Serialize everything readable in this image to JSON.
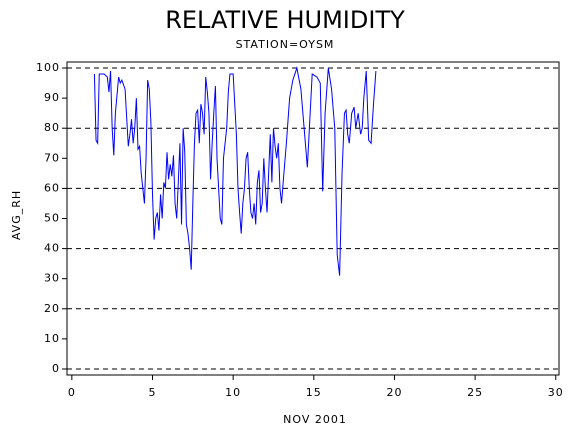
{
  "chart_data": {
    "type": "line",
    "title": "RELATIVE HUMIDITY",
    "subtitle": "STATION=OYSM",
    "x_label": "NOV 2001",
    "y_label": "AVG_RH",
    "grid": true,
    "color": "#0000ff",
    "xlim": [
      -0.3,
      30.2
    ],
    "ylim": [
      -2,
      102
    ],
    "xticks": [
      0,
      5,
      10,
      15,
      20,
      25,
      30
    ],
    "yticks": [
      0,
      10,
      20,
      30,
      40,
      50,
      60,
      70,
      80,
      90,
      100
    ],
    "x": [
      1.4,
      1.5,
      1.6,
      1.7,
      2.0,
      2.2,
      2.3,
      2.4,
      2.5,
      2.6,
      2.7,
      2.9,
      3.0,
      3.1,
      3.3,
      3.5,
      3.6,
      3.7,
      3.8,
      3.9,
      4.0,
      4.1,
      4.2,
      4.3,
      4.4,
      4.5,
      4.6,
      4.7,
      4.8,
      4.9,
      5.0,
      5.1,
      5.2,
      5.3,
      5.4,
      5.5,
      5.6,
      5.7,
      5.8,
      5.9,
      6.0,
      6.1,
      6.2,
      6.3,
      6.4,
      6.5,
      6.6,
      6.7,
      6.8,
      6.9,
      7.0,
      7.1,
      7.2,
      7.3,
      7.4,
      7.5,
      7.6,
      7.7,
      7.8,
      7.9,
      8.0,
      8.1,
      8.2,
      8.3,
      8.4,
      8.5,
      8.6,
      8.7,
      8.8,
      8.9,
      9.0,
      9.1,
      9.2,
      9.3,
      9.4,
      9.6,
      9.7,
      9.8,
      10.0,
      10.1,
      10.2,
      10.3,
      10.4,
      10.5,
      10.6,
      10.7,
      10.8,
      10.9,
      11.0,
      11.1,
      11.2,
      11.3,
      11.4,
      11.5,
      11.6,
      11.7,
      11.8,
      11.9,
      12.0,
      12.1,
      12.2,
      12.3,
      12.4,
      12.5,
      12.6,
      12.7,
      12.8,
      12.9,
      13.0,
      13.1,
      13.3,
      13.5,
      13.7,
      13.95,
      14.2,
      14.4,
      14.6,
      14.9,
      15.2,
      15.4,
      15.55,
      15.7,
      15.9,
      16.1,
      16.3,
      16.45,
      16.6,
      16.75,
      16.9,
      17.0,
      17.1,
      17.2,
      17.35,
      17.5,
      17.6,
      17.75,
      17.9,
      18.0,
      18.1,
      18.25,
      18.4,
      18.55,
      18.7,
      18.85
    ],
    "values": [
      98,
      76,
      75,
      98,
      98,
      97,
      92,
      99,
      80,
      71,
      85,
      97,
      95,
      96,
      93,
      74,
      78,
      83,
      75,
      80,
      90,
      73,
      74,
      65,
      60,
      55,
      70,
      96,
      93,
      82,
      58,
      43,
      50,
      52,
      46,
      58,
      50,
      62,
      60,
      72,
      63,
      68,
      64,
      71,
      55,
      50,
      62,
      75,
      48,
      80,
      72,
      48,
      45,
      40,
      33,
      55,
      75,
      85,
      86,
      75,
      88,
      85,
      78,
      97,
      92,
      85,
      63,
      75,
      85,
      94,
      70,
      60,
      50,
      48,
      70,
      80,
      92,
      98,
      98,
      88,
      78,
      60,
      52,
      45,
      55,
      60,
      70,
      72,
      60,
      52,
      50,
      55,
      48,
      62,
      66,
      52,
      55,
      70,
      60,
      52,
      65,
      78,
      62,
      80,
      74,
      70,
      75,
      60,
      55,
      62,
      75,
      90,
      96,
      100,
      93,
      80,
      67,
      98,
      97,
      95,
      59,
      85,
      100,
      93,
      80,
      38,
      31,
      65,
      85,
      86,
      78,
      75,
      85,
      87,
      80,
      85,
      78,
      80,
      90,
      99,
      76,
      75,
      88,
      99
    ]
  }
}
